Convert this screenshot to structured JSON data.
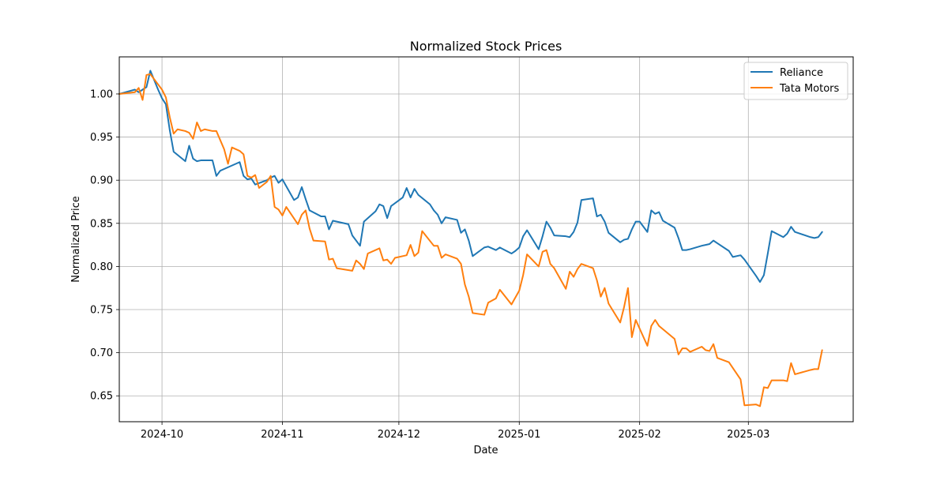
{
  "chart_data": {
    "type": "line",
    "title": "Normalized Stock Prices",
    "xlabel": "Date",
    "ylabel": "Normalized Price",
    "xlim": [
      "2024-09-20",
      "2025-03-28"
    ],
    "ylim": [
      0.62,
      1.043
    ],
    "x_ticks": [
      "2024-10",
      "2024-11",
      "2024-12",
      "2025-01",
      "2025-02",
      "2025-03"
    ],
    "x_tick_dates": [
      "2024-10-01",
      "2024-11-01",
      "2024-12-01",
      "2025-01-01",
      "2025-02-01",
      "2025-03-01"
    ],
    "y_ticks": [
      0.65,
      0.7,
      0.75,
      0.8,
      0.85,
      0.9,
      0.95,
      1.0
    ],
    "y_tick_labels": [
      "0.65",
      "0.70",
      "0.75",
      "0.80",
      "0.85",
      "0.90",
      "0.95",
      "1.00"
    ],
    "grid": true,
    "legend_position": "top-right",
    "series": [
      {
        "name": "Reliance",
        "color": "#1f77b4",
        "points": [
          [
            "2024-09-20",
            1.0
          ],
          [
            "2024-09-24",
            1.005
          ],
          [
            "2024-09-25",
            1.002
          ],
          [
            "2024-09-26",
            1.005
          ],
          [
            "2024-09-27",
            1.008
          ],
          [
            "2024-09-28",
            1.027
          ],
          [
            "2024-09-30",
            1.005
          ],
          [
            "2024-10-01",
            0.995
          ],
          [
            "2024-10-02",
            0.988
          ],
          [
            "2024-10-03",
            0.958
          ],
          [
            "2024-10-04",
            0.933
          ],
          [
            "2024-10-07",
            0.922
          ],
          [
            "2024-10-08",
            0.94
          ],
          [
            "2024-10-09",
            0.925
          ],
          [
            "2024-10-10",
            0.922
          ],
          [
            "2024-10-11",
            0.923
          ],
          [
            "2024-10-14",
            0.923
          ],
          [
            "2024-10-15",
            0.905
          ],
          [
            "2024-10-16",
            0.911
          ],
          [
            "2024-10-17",
            0.913
          ],
          [
            "2024-10-21",
            0.921
          ],
          [
            "2024-10-22",
            0.905
          ],
          [
            "2024-10-23",
            0.901
          ],
          [
            "2024-10-24",
            0.902
          ],
          [
            "2024-10-25",
            0.895
          ],
          [
            "2024-10-28",
            0.9
          ],
          [
            "2024-10-29",
            0.903
          ],
          [
            "2024-10-30",
            0.905
          ],
          [
            "2024-10-31",
            0.897
          ],
          [
            "2024-11-01",
            0.901
          ],
          [
            "2024-11-04",
            0.877
          ],
          [
            "2024-11-05",
            0.88
          ],
          [
            "2024-11-06",
            0.892
          ],
          [
            "2024-11-07",
            0.878
          ],
          [
            "2024-11-08",
            0.865
          ],
          [
            "2024-11-11",
            0.858
          ],
          [
            "2024-11-12",
            0.858
          ],
          [
            "2024-11-13",
            0.843
          ],
          [
            "2024-11-14",
            0.853
          ],
          [
            "2024-11-18",
            0.849
          ],
          [
            "2024-11-19",
            0.836
          ],
          [
            "2024-11-21",
            0.824
          ],
          [
            "2024-11-22",
            0.852
          ],
          [
            "2024-11-25",
            0.864
          ],
          [
            "2024-11-26",
            0.872
          ],
          [
            "2024-11-27",
            0.87
          ],
          [
            "2024-11-28",
            0.856
          ],
          [
            "2024-11-29",
            0.87
          ],
          [
            "2024-12-02",
            0.88
          ],
          [
            "2024-12-03",
            0.891
          ],
          [
            "2024-12-04",
            0.88
          ],
          [
            "2024-12-05",
            0.89
          ],
          [
            "2024-12-06",
            0.883
          ],
          [
            "2024-12-09",
            0.872
          ],
          [
            "2024-12-10",
            0.865
          ],
          [
            "2024-12-11",
            0.86
          ],
          [
            "2024-12-12",
            0.85
          ],
          [
            "2024-12-13",
            0.857
          ],
          [
            "2024-12-16",
            0.854
          ],
          [
            "2024-12-17",
            0.839
          ],
          [
            "2024-12-18",
            0.843
          ],
          [
            "2024-12-19",
            0.83
          ],
          [
            "2024-12-20",
            0.812
          ],
          [
            "2024-12-23",
            0.822
          ],
          [
            "2024-12-24",
            0.823
          ],
          [
            "2024-12-26",
            0.819
          ],
          [
            "2024-12-27",
            0.822
          ],
          [
            "2024-12-30",
            0.815
          ],
          [
            "2024-12-31",
            0.818
          ],
          [
            "2025-01-01",
            0.822
          ],
          [
            "2025-01-02",
            0.835
          ],
          [
            "2025-01-03",
            0.842
          ],
          [
            "2025-01-06",
            0.82
          ],
          [
            "2025-01-07",
            0.835
          ],
          [
            "2025-01-08",
            0.852
          ],
          [
            "2025-01-09",
            0.845
          ],
          [
            "2025-01-10",
            0.836
          ],
          [
            "2025-01-13",
            0.835
          ],
          [
            "2025-01-14",
            0.834
          ],
          [
            "2025-01-15",
            0.84
          ],
          [
            "2025-01-16",
            0.851
          ],
          [
            "2025-01-17",
            0.877
          ],
          [
            "2025-01-20",
            0.879
          ],
          [
            "2025-01-21",
            0.858
          ],
          [
            "2025-01-22",
            0.86
          ],
          [
            "2025-01-23",
            0.852
          ],
          [
            "2025-01-24",
            0.839
          ],
          [
            "2025-01-27",
            0.828
          ],
          [
            "2025-01-28",
            0.831
          ],
          [
            "2025-01-29",
            0.832
          ],
          [
            "2025-01-30",
            0.843
          ],
          [
            "2025-01-31",
            0.852
          ],
          [
            "2025-02-01",
            0.852
          ],
          [
            "2025-02-03",
            0.84
          ],
          [
            "2025-02-04",
            0.865
          ],
          [
            "2025-02-05",
            0.861
          ],
          [
            "2025-02-06",
            0.863
          ],
          [
            "2025-02-07",
            0.853
          ],
          [
            "2025-02-10",
            0.845
          ],
          [
            "2025-02-11",
            0.833
          ],
          [
            "2025-02-12",
            0.819
          ],
          [
            "2025-02-13",
            0.819
          ],
          [
            "2025-02-14",
            0.82
          ],
          [
            "2025-02-17",
            0.824
          ],
          [
            "2025-02-18",
            0.825
          ],
          [
            "2025-02-19",
            0.826
          ],
          [
            "2025-02-20",
            0.83
          ],
          [
            "2025-02-21",
            0.827
          ],
          [
            "2025-02-24",
            0.818
          ],
          [
            "2025-02-25",
            0.811
          ],
          [
            "2025-02-27",
            0.813
          ],
          [
            "2025-02-28",
            0.808
          ],
          [
            "2025-03-03",
            0.789
          ],
          [
            "2025-03-04",
            0.782
          ],
          [
            "2025-03-05",
            0.79
          ],
          [
            "2025-03-06",
            0.815
          ],
          [
            "2025-03-07",
            0.841
          ],
          [
            "2025-03-10",
            0.834
          ],
          [
            "2025-03-11",
            0.838
          ],
          [
            "2025-03-12",
            0.846
          ],
          [
            "2025-03-13",
            0.84
          ],
          [
            "2025-03-17",
            0.834
          ],
          [
            "2025-03-18",
            0.833
          ],
          [
            "2025-03-19",
            0.834
          ],
          [
            "2025-03-20",
            0.84
          ]
        ]
      },
      {
        "name": "Tata Motors",
        "color": "#ff7f0e",
        "points": [
          [
            "2024-09-20",
            1.0
          ],
          [
            "2024-09-24",
            1.002
          ],
          [
            "2024-09-25",
            1.007
          ],
          [
            "2024-09-26",
            0.993
          ],
          [
            "2024-09-27",
            1.022
          ],
          [
            "2024-09-28",
            1.023
          ],
          [
            "2024-09-30",
            1.011
          ],
          [
            "2024-10-01",
            1.005
          ],
          [
            "2024-10-02",
            0.996
          ],
          [
            "2024-10-03",
            0.973
          ],
          [
            "2024-10-04",
            0.954
          ],
          [
            "2024-10-05",
            0.959
          ],
          [
            "2024-10-07",
            0.957
          ],
          [
            "2024-10-08",
            0.955
          ],
          [
            "2024-10-09",
            0.948
          ],
          [
            "2024-10-10",
            0.967
          ],
          [
            "2024-10-11",
            0.957
          ],
          [
            "2024-10-12",
            0.959
          ],
          [
            "2024-10-14",
            0.957
          ],
          [
            "2024-10-15",
            0.957
          ],
          [
            "2024-10-17",
            0.936
          ],
          [
            "2024-10-18",
            0.919
          ],
          [
            "2024-10-19",
            0.938
          ],
          [
            "2024-10-21",
            0.934
          ],
          [
            "2024-10-22",
            0.93
          ],
          [
            "2024-10-23",
            0.905
          ],
          [
            "2024-10-24",
            0.903
          ],
          [
            "2024-10-25",
            0.906
          ],
          [
            "2024-10-26",
            0.891
          ],
          [
            "2024-10-28",
            0.898
          ],
          [
            "2024-10-29",
            0.905
          ],
          [
            "2024-10-30",
            0.869
          ],
          [
            "2024-10-31",
            0.866
          ],
          [
            "2024-11-01",
            0.859
          ],
          [
            "2024-11-02",
            0.869
          ],
          [
            "2024-11-05",
            0.849
          ],
          [
            "2024-11-06",
            0.86
          ],
          [
            "2024-11-07",
            0.865
          ],
          [
            "2024-11-08",
            0.844
          ],
          [
            "2024-11-09",
            0.83
          ],
          [
            "2024-11-12",
            0.829
          ],
          [
            "2024-11-13",
            0.808
          ],
          [
            "2024-11-14",
            0.809
          ],
          [
            "2024-11-15",
            0.798
          ],
          [
            "2024-11-19",
            0.795
          ],
          [
            "2024-11-20",
            0.807
          ],
          [
            "2024-11-21",
            0.803
          ],
          [
            "2024-11-22",
            0.797
          ],
          [
            "2024-11-23",
            0.815
          ],
          [
            "2024-11-26",
            0.821
          ],
          [
            "2024-11-27",
            0.807
          ],
          [
            "2024-11-28",
            0.808
          ],
          [
            "2024-11-29",
            0.803
          ],
          [
            "2024-11-30",
            0.81
          ],
          [
            "2024-12-02",
            0.812
          ],
          [
            "2024-12-03",
            0.813
          ],
          [
            "2024-12-04",
            0.825
          ],
          [
            "2024-12-05",
            0.812
          ],
          [
            "2024-12-06",
            0.816
          ],
          [
            "2024-12-07",
            0.841
          ],
          [
            "2024-12-10",
            0.824
          ],
          [
            "2024-12-11",
            0.824
          ],
          [
            "2024-12-12",
            0.81
          ],
          [
            "2024-12-13",
            0.814
          ],
          [
            "2024-12-16",
            0.809
          ],
          [
            "2024-12-17",
            0.803
          ],
          [
            "2024-12-18",
            0.779
          ],
          [
            "2024-12-19",
            0.765
          ],
          [
            "2024-12-20",
            0.746
          ],
          [
            "2024-12-23",
            0.744
          ],
          [
            "2024-12-24",
            0.758
          ],
          [
            "2024-12-26",
            0.763
          ],
          [
            "2024-12-27",
            0.773
          ],
          [
            "2024-12-30",
            0.756
          ],
          [
            "2025-01-01",
            0.772
          ],
          [
            "2025-01-02",
            0.79
          ],
          [
            "2025-01-03",
            0.814
          ],
          [
            "2025-01-06",
            0.8
          ],
          [
            "2025-01-07",
            0.817
          ],
          [
            "2025-01-08",
            0.819
          ],
          [
            "2025-01-09",
            0.803
          ],
          [
            "2025-01-10",
            0.798
          ],
          [
            "2025-01-13",
            0.774
          ],
          [
            "2025-01-14",
            0.794
          ],
          [
            "2025-01-15",
            0.788
          ],
          [
            "2025-01-16",
            0.797
          ],
          [
            "2025-01-17",
            0.803
          ],
          [
            "2025-01-20",
            0.798
          ],
          [
            "2025-01-21",
            0.784
          ],
          [
            "2025-01-22",
            0.765
          ],
          [
            "2025-01-23",
            0.775
          ],
          [
            "2025-01-24",
            0.757
          ],
          [
            "2025-01-27",
            0.735
          ],
          [
            "2025-01-28",
            0.753
          ],
          [
            "2025-01-29",
            0.775
          ],
          [
            "2025-01-30",
            0.718
          ],
          [
            "2025-01-31",
            0.738
          ],
          [
            "2025-02-03",
            0.708
          ],
          [
            "2025-02-04",
            0.731
          ],
          [
            "2025-02-05",
            0.738
          ],
          [
            "2025-02-06",
            0.731
          ],
          [
            "2025-02-10",
            0.716
          ],
          [
            "2025-02-11",
            0.698
          ],
          [
            "2025-02-12",
            0.705
          ],
          [
            "2025-02-13",
            0.705
          ],
          [
            "2025-02-14",
            0.701
          ],
          [
            "2025-02-17",
            0.707
          ],
          [
            "2025-02-18",
            0.703
          ],
          [
            "2025-02-19",
            0.702
          ],
          [
            "2025-02-20",
            0.71
          ],
          [
            "2025-02-21",
            0.694
          ],
          [
            "2025-02-24",
            0.689
          ],
          [
            "2025-02-27",
            0.669
          ],
          [
            "2025-02-28",
            0.639
          ],
          [
            "2025-03-03",
            0.64
          ],
          [
            "2025-03-04",
            0.638
          ],
          [
            "2025-03-05",
            0.66
          ],
          [
            "2025-03-06",
            0.659
          ],
          [
            "2025-03-07",
            0.668
          ],
          [
            "2025-03-10",
            0.668
          ],
          [
            "2025-03-11",
            0.667
          ],
          [
            "2025-03-12",
            0.688
          ],
          [
            "2025-03-13",
            0.675
          ],
          [
            "2025-03-17",
            0.68
          ],
          [
            "2025-03-18",
            0.681
          ],
          [
            "2025-03-19",
            0.681
          ],
          [
            "2025-03-20",
            0.703
          ]
        ]
      }
    ]
  }
}
